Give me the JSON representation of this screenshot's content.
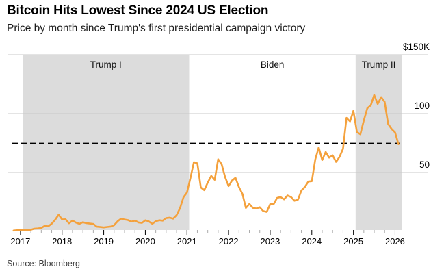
{
  "header": {
    "title": "Bitcoin Hits Lowest Since 2024 US Election",
    "subtitle": "Price by month since Trump's first presidential campaign victory"
  },
  "footer": {
    "source": "Source: Bloomberg"
  },
  "chart_data": {
    "type": "line",
    "unit": "USD thousands",
    "grid": true,
    "legend": false,
    "ylim": [
      0,
      150
    ],
    "x_start_month": "2016-11",
    "x_end_month": "2026-02",
    "x_ticks": [
      "2017",
      "2018",
      "2019",
      "2020",
      "2021",
      "2022",
      "2023",
      "2024",
      "2025",
      "2026"
    ],
    "y_ticks": [
      {
        "label": "$150K",
        "value": 150
      },
      {
        "label": "100",
        "value": 100
      },
      {
        "label": "50",
        "value": 50
      }
    ],
    "reference_line": {
      "value": 74.5,
      "style": "dashed",
      "color": "#000000"
    },
    "band_color": "#DCDCDC",
    "presidency_bands": [
      {
        "label": "Trump I",
        "start": "2017-01-20",
        "end": "2021-01-20",
        "shaded": true
      },
      {
        "label": "Biden",
        "start": "2021-01-20",
        "end": "2025-01-20",
        "shaded": false
      },
      {
        "label": "Trump II",
        "start": "2025-01-20",
        "end": "2026-02-28",
        "shaded": true
      }
    ],
    "series": [
      {
        "name": "Bitcoin price by month",
        "color": "#F4A13C",
        "monthly_values_usd_thousands": [
          0.7,
          1.0,
          1.0,
          1.2,
          1.1,
          1.4,
          2.3,
          2.5,
          2.9,
          4.7,
          4.3,
          6.5,
          9.9,
          14.2,
          10.2,
          10.3,
          6.9,
          9.2,
          7.5,
          6.4,
          7.8,
          7.0,
          6.6,
          6.3,
          4.0,
          3.7,
          3.4,
          3.8,
          4.1,
          5.3,
          8.6,
          10.8,
          10.1,
          9.6,
          8.3,
          9.2,
          7.6,
          7.2,
          9.4,
          8.5,
          6.4,
          8.6,
          9.5,
          9.1,
          11.3,
          11.7,
          10.8,
          13.8,
          19.7,
          29.0,
          33.1,
          45.2,
          58.8,
          57.8,
          37.3,
          35.0,
          41.5,
          47.2,
          43.8,
          61.3,
          57.0,
          46.2,
          38.5,
          43.2,
          45.5,
          37.6,
          31.8,
          19.9,
          23.3,
          20.0,
          19.4,
          20.5,
          17.2,
          16.5,
          23.1,
          23.1,
          28.5,
          29.2,
          27.2,
          30.5,
          29.2,
          26.0,
          26.9,
          34.7,
          37.7,
          42.3,
          42.6,
          61.2,
          71.3,
          60.6,
          67.5,
          62.7,
          64.6,
          59.0,
          63.3,
          70.2,
          96.4,
          93.4,
          102.4,
          84.3,
          82.5,
          94.2,
          104.6,
          107.1,
          115.8,
          108.2,
          114.0,
          109.9,
          91.3,
          87.0,
          84.0,
          74.0
        ]
      }
    ]
  }
}
